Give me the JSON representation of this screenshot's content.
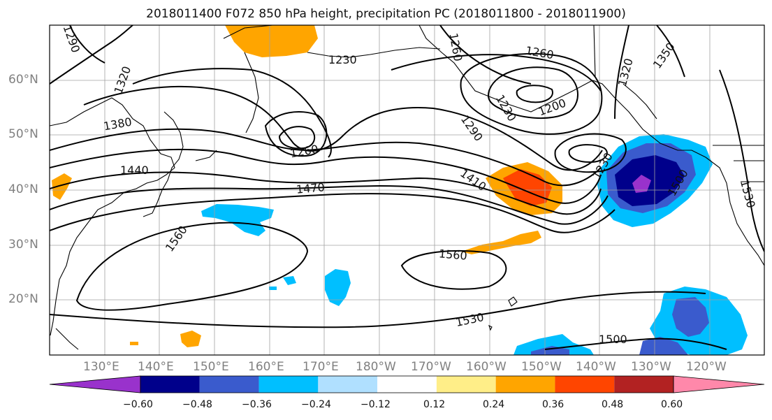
{
  "title": "2018011400 F072 850 hPa height, precipitation PC (2018011800 - 2018011900)",
  "lat_labels": [
    "60°N",
    "50°N",
    "40°N",
    "30°N",
    "20°N"
  ],
  "lon_labels": [
    "130°E",
    "140°E",
    "150°E",
    "160°E",
    "170°E",
    "180°W",
    "170°W",
    "160°W",
    "150°W",
    "140°W",
    "130°W",
    "120°W"
  ],
  "contour_labels": [
    "1290",
    "1320",
    "1380",
    "1440",
    "1470",
    "1560",
    "1560",
    "1530",
    "1500",
    "1230",
    "1260",
    "1260",
    "1200",
    "1230",
    "1290",
    "1410",
    "1320",
    "1350",
    "1260",
    "1230",
    "1500",
    "1530",
    "1260"
  ],
  "colorbar": {
    "ticks": [
      "−0.60",
      "−0.48",
      "−0.36",
      "−0.24",
      "−0.12",
      "0.12",
      "0.24",
      "0.36",
      "0.48",
      "0.60"
    ],
    "colors": [
      "#9932cc",
      "#00008b",
      "#3a5bcd",
      "#00bfff",
      "#b0e0ff",
      "#ffffff",
      "#ffee88",
      "#ffa500",
      "#ff4500",
      "#b22222",
      "#ff88aa"
    ]
  }
}
